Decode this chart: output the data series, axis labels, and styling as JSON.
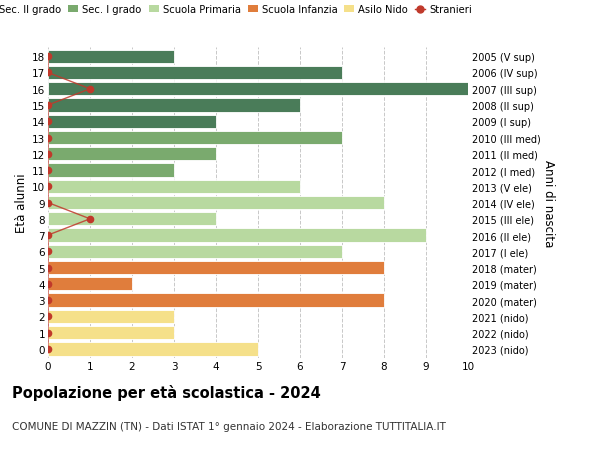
{
  "ages": [
    18,
    17,
    16,
    15,
    14,
    13,
    12,
    11,
    10,
    9,
    8,
    7,
    6,
    5,
    4,
    3,
    2,
    1,
    0
  ],
  "right_labels": [
    "2005 (V sup)",
    "2006 (IV sup)",
    "2007 (III sup)",
    "2008 (II sup)",
    "2009 (I sup)",
    "2010 (III med)",
    "2011 (II med)",
    "2012 (I med)",
    "2013 (V ele)",
    "2014 (IV ele)",
    "2015 (III ele)",
    "2016 (II ele)",
    "2017 (I ele)",
    "2018 (mater)",
    "2019 (mater)",
    "2020 (mater)",
    "2021 (nido)",
    "2022 (nido)",
    "2023 (nido)"
  ],
  "bar_values": [
    3,
    7,
    10,
    6,
    4,
    7,
    4,
    3,
    6,
    8,
    4,
    9,
    7,
    8,
    2,
    8,
    3,
    3,
    5
  ],
  "stranieri_values": [
    0,
    0,
    1,
    0,
    0,
    0,
    0,
    0,
    0,
    0,
    1,
    0,
    0,
    0,
    0,
    0,
    0,
    0,
    0
  ],
  "bar_colors": [
    "#4a7c59",
    "#4a7c59",
    "#4a7c59",
    "#4a7c59",
    "#4a7c59",
    "#7aaa6e",
    "#7aaa6e",
    "#7aaa6e",
    "#b8d9a0",
    "#b8d9a0",
    "#b8d9a0",
    "#b8d9a0",
    "#b8d9a0",
    "#e07d3c",
    "#e07d3c",
    "#e07d3c",
    "#f5e08a",
    "#f5e08a",
    "#f5e08a"
  ],
  "legend_labels": [
    "Sec. II grado",
    "Sec. I grado",
    "Scuola Primaria",
    "Scuola Infanzia",
    "Asilo Nido",
    "Stranieri"
  ],
  "legend_colors": [
    "#4a7c59",
    "#7aaa6e",
    "#b8d9a0",
    "#e07d3c",
    "#f5e08a",
    "#c0392b"
  ],
  "stranieri_color": "#c0392b",
  "ylabel_left": "Età alunni",
  "ylabel_right": "Anni di nascita",
  "title_bold": "Popolazione per età scolastica - 2024",
  "subtitle": "COMUNE DI MAZZIN (TN) - Dati ISTAT 1° gennaio 2024 - Elaborazione TUTTITALIA.IT",
  "xlim": [
    0,
    10
  ],
  "background_color": "#ffffff",
  "grid_color": "#c8c8c8"
}
